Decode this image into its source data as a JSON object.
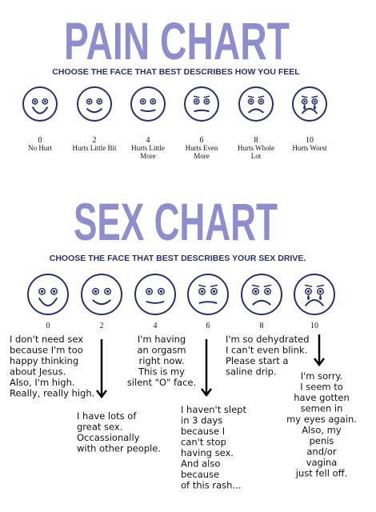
{
  "pain_chart": {
    "title": "PAIN CHART",
    "subtitle": "CHOOSE THE FACE THAT BEST DESCRIBES HOW YOU FEEL",
    "faces": [
      {
        "value": 0,
        "label": [
          "No Hurt"
        ]
      },
      {
        "value": 2,
        "label": [
          "Hurts Little Bit"
        ]
      },
      {
        "value": 4,
        "label": [
          "Hurts Little",
          "More"
        ]
      },
      {
        "value": 6,
        "label": [
          "Hurts Even",
          "More"
        ]
      },
      {
        "value": 8,
        "label": [
          "Hurts Whole",
          "Lot"
        ]
      },
      {
        "value": 10,
        "label": [
          "Hurts Worst"
        ]
      }
    ]
  },
  "sex_chart": {
    "title": "SEX CHART",
    "subtitle": "CHOOSE THE FACE THAT BEST DESCRIBES YOUR SEX DRIVE.",
    "faces": [
      {
        "value": 0,
        "caption": [
          "I don't need sex",
          "because I'm too",
          "happy thinking",
          "about Jesus.",
          "Also, I'm high.",
          "Really, really high."
        ]
      },
      {
        "value": 2,
        "caption": [
          "I have lots of",
          "great sex.",
          "Occassionally",
          "with other people."
        ]
      },
      {
        "value": 4,
        "caption": [
          "I'm having",
          "an orgasm",
          "right now.",
          "This is my",
          "silent \"O\" face."
        ]
      },
      {
        "value": 6,
        "caption": [
          "I haven't slept",
          "in 3 days",
          "because I",
          "can't stop",
          "having sex.",
          "And also",
          "because",
          "of this rash..."
        ]
      },
      {
        "value": 8,
        "caption": [
          "I'm so dehydrated",
          "I can't even blink.",
          "Please start a",
          "saline drip."
        ]
      },
      {
        "value": 10,
        "caption": [
          "I'm sorry.",
          "I seem to",
          "have gotten",
          "semen in",
          "my eyes again.",
          "Also, my",
          "penis",
          "and/or",
          "vagina",
          "just fell off."
        ]
      }
    ]
  }
}
